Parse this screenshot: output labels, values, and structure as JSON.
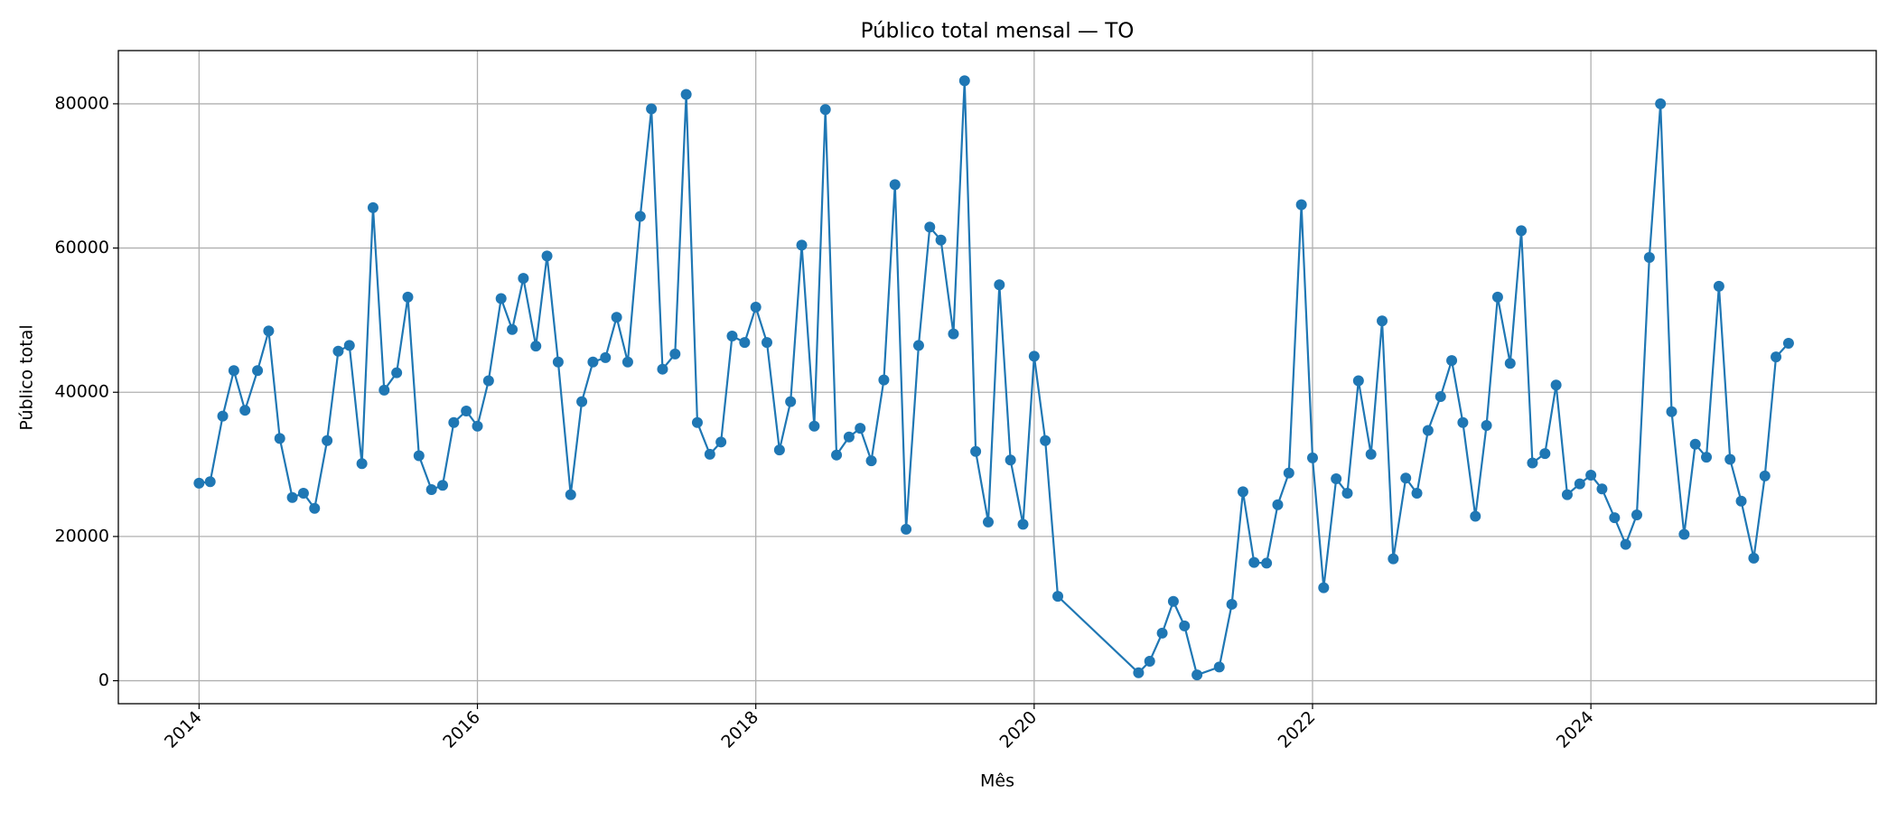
{
  "chart_data": {
    "type": "line",
    "title": "Público total mensal — TO",
    "x_label": "Mês",
    "y_label": "Público total",
    "series": [
      {
        "name": "Público total",
        "color": "#1f77b4",
        "x": [
          2014,
          2014.08,
          2014.17,
          2014.25,
          2014.33,
          2014.42,
          2014.5,
          2014.58,
          2014.67,
          2014.75,
          2014.83,
          2014.92,
          2015,
          2015.08,
          2015.17,
          2015.25,
          2015.33,
          2015.42,
          2015.5,
          2015.58,
          2015.67,
          2015.75,
          2015.83,
          2015.92,
          2016,
          2016.08,
          2016.17,
          2016.25,
          2016.33,
          2016.42,
          2016.5,
          2016.58,
          2016.67,
          2016.75,
          2016.83,
          2016.92,
          2017,
          2017.08,
          2017.17,
          2017.25,
          2017.33,
          2017.42,
          2017.5,
          2017.58,
          2017.67,
          2017.75,
          2017.83,
          2017.92,
          2018,
          2018.08,
          2018.17,
          2018.25,
          2018.33,
          2018.42,
          2018.5,
          2018.58,
          2018.67,
          2018.75,
          2018.83,
          2018.92,
          2019,
          2019.08,
          2019.17,
          2019.25,
          2019.33,
          2019.42,
          2019.5,
          2019.58,
          2019.67,
          2019.75,
          2019.83,
          2019.92,
          2020,
          2020.08,
          2020.17,
          2020.75,
          2020.83,
          2020.92,
          2021,
          2021.08,
          2021.17,
          2021.33,
          2021.42,
          2021.5,
          2021.58,
          2021.67,
          2021.75,
          2021.83,
          2021.92,
          2022,
          2022.08,
          2022.17,
          2022.25,
          2022.33,
          2022.42,
          2022.5,
          2022.58,
          2022.67,
          2022.75,
          2022.83,
          2022.92,
          2023,
          2023.08,
          2023.17,
          2023.25,
          2023.33,
          2023.42,
          2023.5,
          2023.58,
          2023.67,
          2023.75,
          2023.83,
          2023.92,
          2024,
          2024.08,
          2024.17,
          2024.25,
          2024.33,
          2024.42,
          2024.5,
          2024.58,
          2024.67,
          2024.75,
          2024.83,
          2024.92,
          2025,
          2025.08,
          2025.17,
          2025.25,
          2025.33,
          2025.42
        ],
        "values": [
          27400,
          27600,
          36700,
          43000,
          37500,
          43000,
          48500,
          33600,
          25400,
          26000,
          23900,
          33300,
          45700,
          46500,
          30100,
          65600,
          40300,
          42700,
          53200,
          31200,
          26500,
          27100,
          35800,
          37400,
          35300,
          41600,
          53000,
          48700,
          55800,
          46400,
          58900,
          44200,
          25800,
          38700,
          44200,
          44800,
          50400,
          44200,
          64400,
          79300,
          43200,
          45300,
          81300,
          35800,
          31400,
          33100,
          47800,
          46900,
          51800,
          46900,
          32000,
          38700,
          60400,
          35300,
          79200,
          31300,
          33800,
          35000,
          30500,
          41700,
          68800,
          21000,
          46500,
          62900,
          61100,
          48100,
          83200,
          31800,
          22000,
          54900,
          30600,
          21700,
          45000,
          33300,
          11700,
          1100,
          2700,
          6600,
          11000,
          7600,
          800,
          1900,
          10600,
          26200,
          16400,
          16300,
          24400,
          28800,
          66000,
          30900,
          12900,
          28000,
          26000,
          41600,
          31400,
          49900,
          16900,
          28100,
          26000,
          34700,
          39400,
          44400,
          35800,
          22800,
          35400,
          53200,
          44000,
          62400,
          30200,
          31500,
          41000,
          25800,
          27300,
          28500,
          26600,
          22600,
          18900,
          23000,
          58700,
          80000,
          37300,
          20300,
          32800,
          31000,
          54700,
          30700,
          24900,
          17000,
          28400,
          44900,
          46800
        ]
      }
    ],
    "xlim": [
      2013.42,
      2026.05
    ],
    "xticks": [
      2014,
      2016,
      2018,
      2020,
      2022,
      2024
    ],
    "ylim": [
      -3187,
      87380
    ],
    "yticks": [
      0,
      20000,
      40000,
      60000,
      80000
    ],
    "grid": true
  }
}
